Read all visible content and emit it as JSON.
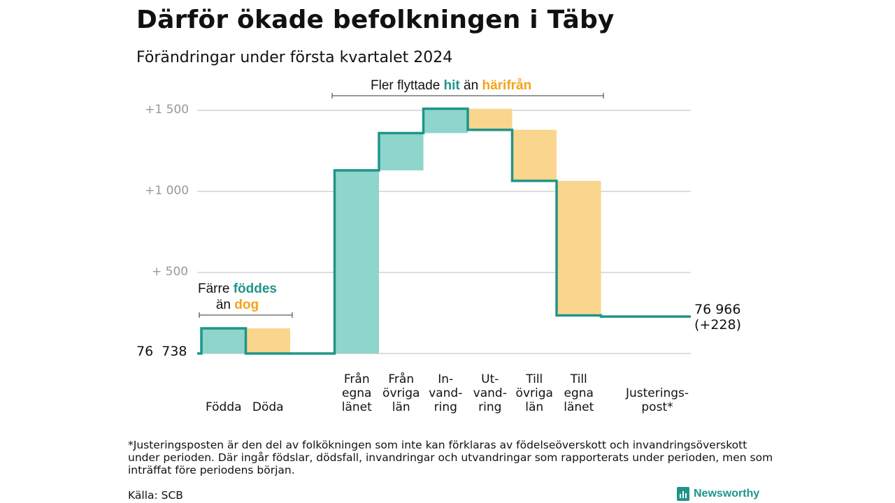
{
  "title": "Därför ökade befolkningen i Täby",
  "subtitle": "Förändringar under första kvartalet 2024",
  "annotations": {
    "fler": {
      "prefix": "Fler flyttade",
      "hit": "hit",
      "mid": "än",
      "harifran": "härifrån"
    },
    "farre": {
      "line1_prefix": "Färre",
      "foddes": "föddes",
      "line2_prefix": "än",
      "dog": "dog"
    }
  },
  "yaxis": {
    "labels": [
      {
        "text": "+1 500",
        "value": 1500
      },
      {
        "text": "+1 000",
        "value": 1000
      },
      {
        "text": "+ 500",
        "value": 500
      }
    ]
  },
  "start_label": "76  738",
  "end_label": {
    "line1": "76 966",
    "line2": "(+228)"
  },
  "categories": [
    {
      "lines": [
        "Födda"
      ]
    },
    {
      "lines": [
        "Döda"
      ]
    },
    {
      "lines": [
        "Från",
        "egna",
        "länet"
      ]
    },
    {
      "lines": [
        "Från",
        "övriga",
        "län"
      ]
    },
    {
      "lines": [
        "In-",
        "vand-",
        "ring"
      ]
    },
    {
      "lines": [
        "Ut-",
        "vand-",
        "ring"
      ]
    },
    {
      "lines": [
        "Till",
        "övriga",
        "län"
      ]
    },
    {
      "lines": [
        "Till",
        "egna",
        "länet"
      ]
    },
    {
      "lines": [
        "Justerings-",
        "post*"
      ]
    }
  ],
  "footnote": "*Justeringsposten är den del av folkökningen som inte kan förklaras av födelseöverskott och invandringsöverskott under perioden. Där ingår födslar, dödsfall, invandringar och utvandringar som rapporterats under perioden, men som inträffat före periodens början.",
  "source": "Källa: SCB",
  "brand": "Newsworthy",
  "colors": {
    "increase": "#8ed5cc",
    "decrease": "#fad58e",
    "line": "#1f9589",
    "grid": "#dddddd",
    "teal_text": "#1f9589",
    "orange_text": "#f5a31a"
  },
  "chart_data": {
    "type": "waterfall",
    "title": "Därför ökade befolkningen i Täby",
    "subtitle": "Förändringar under första kvartalet 2024",
    "baseline_population": 76738,
    "end_population": 76966,
    "net_change": 228,
    "ylim": [
      0,
      1500
    ],
    "grid": true,
    "steps": [
      {
        "category": "Födda",
        "change": 155,
        "kind": "increase"
      },
      {
        "category": "Döda",
        "change": -155,
        "kind": "decrease"
      },
      {
        "category": "Från egna länet",
        "change": 1130,
        "kind": "increase"
      },
      {
        "category": "Från övriga län",
        "change": 230,
        "kind": "increase"
      },
      {
        "category": "Invandring",
        "change": 150,
        "kind": "increase"
      },
      {
        "category": "Utvandring",
        "change": -130,
        "kind": "decrease"
      },
      {
        "category": "Till övriga län",
        "change": -315,
        "kind": "decrease"
      },
      {
        "category": "Till egna länet",
        "change": -830,
        "kind": "decrease"
      },
      {
        "category": "Justeringspost*",
        "change": -7,
        "kind": "decrease"
      }
    ]
  }
}
